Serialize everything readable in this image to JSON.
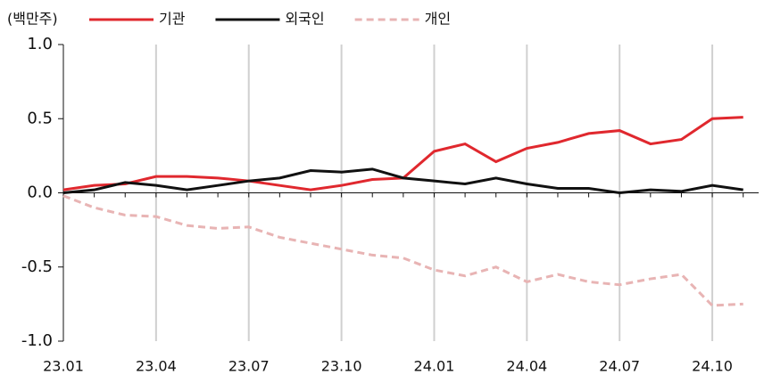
{
  "chart_data": {
    "type": "line",
    "y_label": "(백만주)",
    "categories": [
      "23.01",
      null,
      null,
      "23.04",
      null,
      null,
      "23.07",
      null,
      null,
      "23.10",
      null,
      null,
      "24.01",
      null,
      null,
      "24.04",
      null,
      null,
      "24.07",
      null,
      null,
      "24.10",
      null
    ],
    "series": [
      {
        "name": "기관",
        "color": "#e0282e",
        "dashed": false,
        "values": [
          0.02,
          0.05,
          0.06,
          0.11,
          0.11,
          0.1,
          0.08,
          0.05,
          0.02,
          0.05,
          0.09,
          0.1,
          0.28,
          0.33,
          0.21,
          0.3,
          0.34,
          0.4,
          0.42,
          0.33,
          0.36,
          0.5,
          0.51
        ]
      },
      {
        "name": "외국인",
        "color": "#111111",
        "dashed": false,
        "values": [
          0.0,
          0.02,
          0.07,
          0.05,
          0.02,
          0.05,
          0.08,
          0.1,
          0.15,
          0.14,
          0.16,
          0.1,
          0.08,
          0.06,
          0.1,
          0.06,
          0.03,
          0.03,
          0.0,
          0.02,
          0.01,
          0.05,
          0.02
        ]
      },
      {
        "name": "개인",
        "color": "#e8b4b4",
        "dashed": true,
        "values": [
          -0.02,
          -0.1,
          -0.15,
          -0.16,
          -0.22,
          -0.24,
          -0.23,
          -0.3,
          -0.34,
          -0.38,
          -0.42,
          -0.44,
          -0.52,
          -0.56,
          -0.5,
          -0.6,
          -0.55,
          -0.6,
          -0.62,
          -0.58,
          -0.55,
          -0.76,
          -0.75
        ]
      }
    ],
    "ylim": [
      -1,
      1
    ],
    "yticks": [
      {
        "value": 1,
        "label": "1.0"
      },
      {
        "value": 0.5,
        "label": "0.5"
      },
      {
        "value": 0,
        "label": "0.0"
      },
      {
        "value": -0.5,
        "label": "-0.5"
      },
      {
        "value": -1,
        "label": "-1.0"
      }
    ],
    "grid": true
  }
}
